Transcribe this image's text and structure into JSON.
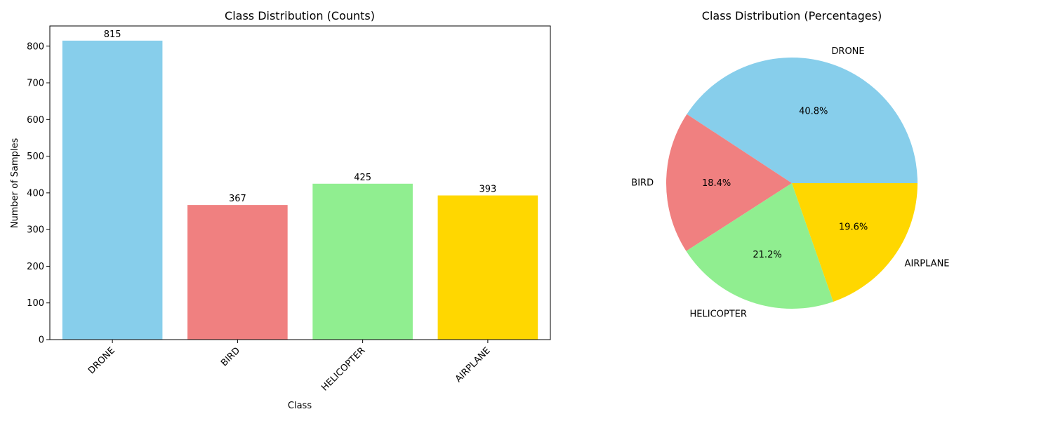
{
  "chart_data": [
    {
      "type": "bar",
      "title": "Class Distribution (Counts)",
      "xlabel": "Class",
      "ylabel": "Number of Samples",
      "categories": [
        "DRONE",
        "BIRD",
        "HELICOPTER",
        "AIRPLANE"
      ],
      "values": [
        815,
        367,
        425,
        393
      ],
      "data_labels": [
        "815",
        "367",
        "425",
        "393"
      ],
      "colors": [
        "#87ceeb",
        "#f08080",
        "#90ee90",
        "#ffd700"
      ],
      "ylim": [
        0,
        855
      ],
      "yticks": [
        0,
        100,
        200,
        300,
        400,
        500,
        600,
        700,
        800
      ],
      "grid": false
    },
    {
      "type": "pie",
      "title": "Class Distribution (Percentages)",
      "labels": [
        "DRONE",
        "BIRD",
        "HELICOPTER",
        "AIRPLANE"
      ],
      "values": [
        815,
        367,
        425,
        393
      ],
      "percent_labels": [
        "40.8%",
        "18.4%",
        "21.2%",
        "19.6%"
      ],
      "colors": [
        "#87ceeb",
        "#f08080",
        "#90ee90",
        "#ffd700"
      ]
    }
  ]
}
